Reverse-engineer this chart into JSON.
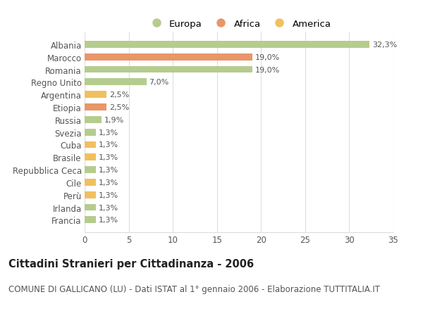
{
  "categories": [
    "Francia",
    "Irlanda",
    "Perù",
    "Cile",
    "Repubblica Ceca",
    "Brasile",
    "Cuba",
    "Svezia",
    "Russia",
    "Etiopia",
    "Argentina",
    "Regno Unito",
    "Romania",
    "Marocco",
    "Albania"
  ],
  "values": [
    1.3,
    1.3,
    1.3,
    1.3,
    1.3,
    1.3,
    1.3,
    1.3,
    1.9,
    2.5,
    2.5,
    7.0,
    19.0,
    19.0,
    32.3
  ],
  "colors": [
    "#b5cc8e",
    "#b5cc8e",
    "#f0c060",
    "#f0c060",
    "#b5cc8e",
    "#f0c060",
    "#f0c060",
    "#b5cc8e",
    "#b5cc8e",
    "#e8966a",
    "#f0c060",
    "#b5cc8e",
    "#b5cc8e",
    "#e8966a",
    "#b5cc8e"
  ],
  "labels": [
    "1,3%",
    "1,3%",
    "1,3%",
    "1,3%",
    "1,3%",
    "1,3%",
    "1,3%",
    "1,3%",
    "1,9%",
    "2,5%",
    "2,5%",
    "7,0%",
    "19,0%",
    "19,0%",
    "32,3%"
  ],
  "legend_labels": [
    "Europa",
    "Africa",
    "America"
  ],
  "legend_colors": [
    "#b5cc8e",
    "#e8966a",
    "#f0c060"
  ],
  "title": "Cittadini Stranieri per Cittadinanza - 2006",
  "subtitle": "COMUNE DI GALLICANO (LU) - Dati ISTAT al 1° gennaio 2006 - Elaborazione TUTTITALIA.IT",
  "xlim": [
    0,
    35
  ],
  "xticks": [
    0,
    5,
    10,
    15,
    20,
    25,
    30,
    35
  ],
  "background_color": "#ffffff",
  "grid_color": "#dddddd",
  "bar_height": 0.55,
  "title_fontsize": 10.5,
  "subtitle_fontsize": 8.5,
  "label_fontsize": 8,
  "tick_fontsize": 8.5,
  "legend_fontsize": 9.5
}
